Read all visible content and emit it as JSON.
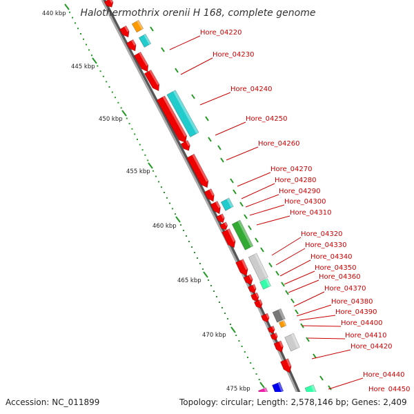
{
  "title": "Halothermothrix orenii H 168, complete genome",
  "footer": {
    "accession": "Accession: NC_011899",
    "topology": "Topology: circular; Length: 2,578,146 bp; Genes: 2,409"
  },
  "colors": {
    "forward_cds": "#ee0000",
    "backbone": "#999999",
    "tick": "#229922",
    "label": "#cc0000",
    "cyan": "#22cccc",
    "orange": "#ff9900",
    "green": "#33aa33",
    "grey": "#cccccc",
    "teal": "#33ffaa",
    "blue": "#0000ee",
    "magenta": "#ee22aa"
  },
  "scale_labels": [
    "440 kbp",
    "445 kbp",
    "450 kbp",
    "455 kbp",
    "460 kbp",
    "465 kbp",
    "470 kbp",
    "475 kbp"
  ],
  "gene_labels": [
    "Hore_04220",
    "Hore_04230",
    "Hore_04240",
    "Hore_04250",
    "Hore_04260",
    "Hore_04270",
    "Hore_04280",
    "Hore_04290",
    "Hore_04300",
    "Hore_04310",
    "Hore_04320",
    "Hore_04330",
    "Hore_04340",
    "Hore_04350",
    "Hore_04360",
    "Hore_04370",
    "Hore_04380",
    "Hore_04390",
    "Hore_04400",
    "Hore_04410",
    "Hore_04420",
    "Hore_04440",
    "Hore_04450"
  ]
}
